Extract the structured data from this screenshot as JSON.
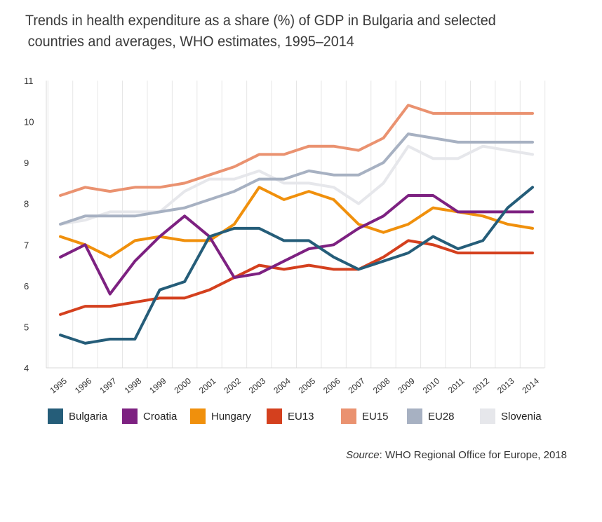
{
  "title": {
    "line1": "Trends in health expenditure as a share (%) of GDP in Bulgaria and selected",
    "line2": "countries and averages, WHO estimates, 1995–2014"
  },
  "source": {
    "prefix": "Source",
    "text": ": WHO Regional Office for Europe, 2018"
  },
  "chart_data": {
    "type": "line",
    "title": "Trends in health expenditure as a share (%) of GDP in Bulgaria and selected countries and averages, WHO estimates, 1995–2014",
    "xlabel": "",
    "ylabel": "",
    "ylim": [
      4,
      11
    ],
    "yticks": [
      "4",
      "5",
      "6",
      "7",
      "8",
      "9",
      "10",
      "11"
    ],
    "categories": [
      "1995",
      "1996",
      "1997",
      "1998",
      "1999",
      "2000",
      "2001",
      "2002",
      "2003",
      "2004",
      "2005",
      "2006",
      "2007",
      "2008",
      "2009",
      "2010",
      "2011",
      "2012",
      "2013",
      "2014"
    ],
    "grid": "vertical lines at each year",
    "legend_position": "bottom",
    "series": [
      {
        "name": "Bulgaria",
        "color": "#255d79",
        "values": [
          4.8,
          4.6,
          4.7,
          4.7,
          5.9,
          6.1,
          7.2,
          7.4,
          7.4,
          7.1,
          7.1,
          6.7,
          6.4,
          6.6,
          6.8,
          7.2,
          6.9,
          7.1,
          7.9,
          8.4
        ]
      },
      {
        "name": "Croatia",
        "color": "#7d2181",
        "values": [
          6.7,
          7.0,
          5.8,
          6.6,
          7.2,
          7.7,
          7.2,
          6.2,
          6.3,
          6.6,
          6.9,
          7.0,
          7.4,
          7.7,
          8.2,
          8.2,
          7.8,
          7.8,
          7.8,
          7.8
        ]
      },
      {
        "name": "Hungary",
        "color": "#f0900c",
        "values": [
          7.2,
          7.0,
          6.7,
          7.1,
          7.2,
          7.1,
          7.1,
          7.5,
          8.4,
          8.1,
          8.3,
          8.1,
          7.5,
          7.3,
          7.5,
          7.9,
          7.8,
          7.7,
          7.5,
          7.4
        ]
      },
      {
        "name": "EU13",
        "color": "#d4401e",
        "values": [
          5.3,
          5.5,
          5.5,
          5.6,
          5.7,
          5.7,
          5.9,
          6.2,
          6.5,
          6.4,
          6.5,
          6.4,
          6.4,
          6.7,
          7.1,
          7.0,
          6.8,
          6.8,
          6.8,
          6.8
        ]
      },
      {
        "name": "EU15",
        "color": "#ea9270",
        "values": [
          8.2,
          8.4,
          8.3,
          8.4,
          8.4,
          8.5,
          8.7,
          8.9,
          9.2,
          9.2,
          9.4,
          9.4,
          9.3,
          9.6,
          10.4,
          10.2,
          10.2,
          10.2,
          10.2,
          10.2
        ]
      },
      {
        "name": "EU28",
        "color": "#a7b1c2",
        "values": [
          7.5,
          7.7,
          7.7,
          7.7,
          7.8,
          7.9,
          8.1,
          8.3,
          8.6,
          8.6,
          8.8,
          8.7,
          8.7,
          9.0,
          9.7,
          9.6,
          9.5,
          9.5,
          9.5,
          9.5
        ]
      },
      {
        "name": "Slovenia",
        "color": "#e6e7eb",
        "values": [
          7.5,
          7.6,
          7.8,
          7.8,
          7.8,
          8.3,
          8.6,
          8.6,
          8.8,
          8.5,
          8.5,
          8.4,
          8.0,
          8.5,
          9.4,
          9.1,
          9.1,
          9.4,
          9.3,
          9.2
        ]
      }
    ],
    "draw_order": [
      "Slovenia",
      "EU28",
      "EU15",
      "EU13",
      "Hungary",
      "Croatia",
      "Bulgaria"
    ]
  }
}
